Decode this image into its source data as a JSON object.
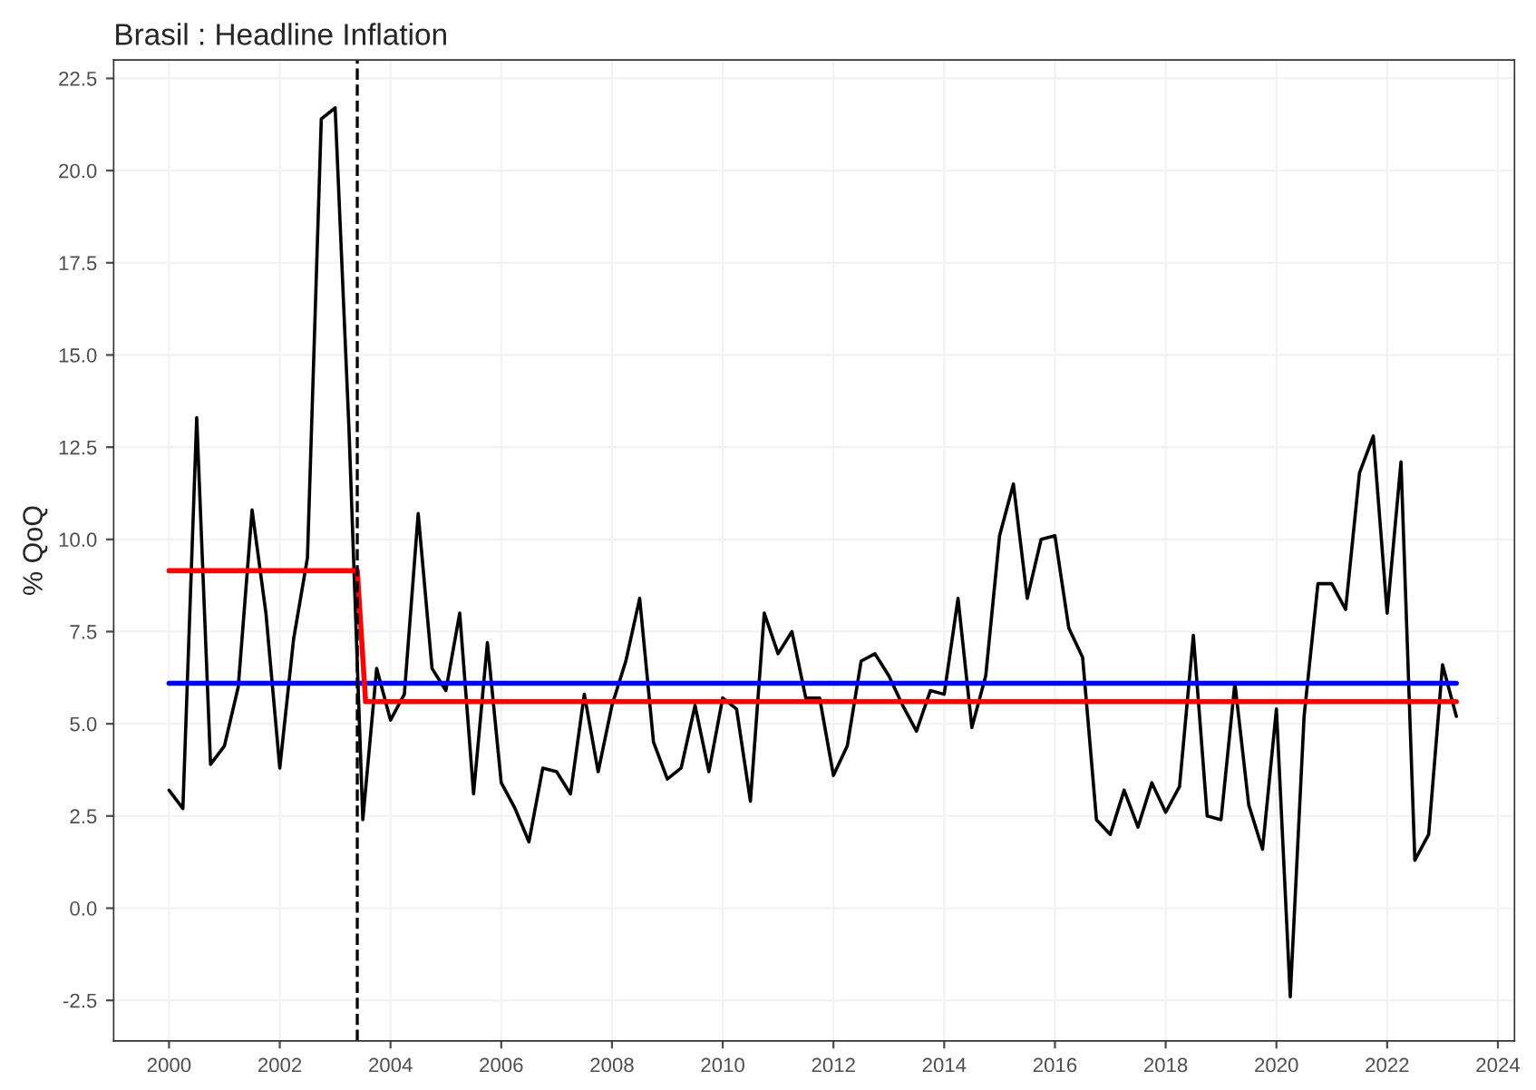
{
  "chart_data": {
    "type": "line",
    "title": "Brasil : Headline Inflation",
    "ylabel": "% QoQ",
    "series": [
      {
        "color": "#000000",
        "x": [
          2000,
          2000.25,
          2000.5,
          2000.75,
          2001,
          2001.25,
          2001.5,
          2001.75,
          2002,
          2002.25,
          2002.5,
          2002.75,
          2003,
          2003.25,
          2003.5,
          2003.75,
          2004,
          2004.25,
          2004.5,
          2004.75,
          2005,
          2005.25,
          2005.5,
          2005.75,
          2006,
          2006.25,
          2006.5,
          2006.75,
          2007,
          2007.25,
          2007.5,
          2007.75,
          2008,
          2008.25,
          2008.5,
          2008.75,
          2009,
          2009.25,
          2009.5,
          2009.75,
          2010,
          2010.25,
          2010.5,
          2010.75,
          2011,
          2011.25,
          2011.5,
          2011.75,
          2012,
          2012.25,
          2012.5,
          2012.75,
          2013,
          2013.25,
          2013.5,
          2013.75,
          2014,
          2014.25,
          2014.5,
          2014.75,
          2015,
          2015.25,
          2015.5,
          2015.75,
          2016,
          2016.25,
          2016.5,
          2016.75,
          2017,
          2017.25,
          2017.5,
          2017.75,
          2018,
          2018.25,
          2018.5,
          2018.75,
          2019,
          2019.25,
          2019.5,
          2019.75,
          2020,
          2020.25,
          2020.5,
          2020.75,
          2021,
          2021.25,
          2021.5,
          2021.75,
          2022,
          2022.25,
          2022.5,
          2022.75,
          2023,
          2023.25
        ],
        "values": [
          3.2,
          2.7,
          13.3,
          3.9,
          4.4,
          6.0,
          10.8,
          8.0,
          3.8,
          7.3,
          9.5,
          21.4,
          21.7,
          13.0,
          2.4,
          6.5,
          5.1,
          5.8,
          10.7,
          6.5,
          5.9,
          8.0,
          3.1,
          7.2,
          3.4,
          2.7,
          1.8,
          3.8,
          3.7,
          3.1,
          5.8,
          3.7,
          5.5,
          6.7,
          8.4,
          4.5,
          3.5,
          3.8,
          5.5,
          3.7,
          5.7,
          5.4,
          2.9,
          8.0,
          6.9,
          7.5,
          5.7,
          5.7,
          3.6,
          4.4,
          6.7,
          6.9,
          6.3,
          5.5,
          4.8,
          5.9,
          5.8,
          8.4,
          4.9,
          6.3,
          10.1,
          11.5,
          8.4,
          10.0,
          10.1,
          7.6,
          6.8,
          2.4,
          2.0,
          3.2,
          2.2,
          3.4,
          2.6,
          3.3,
          7.4,
          2.5,
          2.4,
          6.1,
          2.8,
          1.6,
          5.4,
          -2.4,
          5.2,
          8.8,
          8.8,
          8.1,
          11.8,
          12.8,
          8.0,
          12.1,
          1.3,
          2.0,
          6.6,
          5.2
        ]
      },
      {
        "color": "#0000ff",
        "x": [
          2000,
          2023.25
        ],
        "values": [
          6.1,
          6.1
        ]
      },
      {
        "color": "#ff0000",
        "x": [
          2000,
          2003.4,
          2003.55,
          2023.25
        ],
        "values": [
          9.15,
          9.15,
          5.6,
          5.6
        ]
      }
    ],
    "ref_lines": [
      {
        "axis": "x",
        "value": 2003.4,
        "color": "#000000",
        "line_style": "dashed"
      }
    ],
    "xlim": [
      1999.0,
      2024.3
    ],
    "ylim": [
      -3.6,
      23.0
    ],
    "xticks": [
      2000,
      2002,
      2004,
      2006,
      2008,
      2010,
      2012,
      2014,
      2016,
      2018,
      2020,
      2022,
      2024
    ],
    "yticks": [
      {
        "value": -2.5,
        "label": "-2.5"
      },
      {
        "value": 0,
        "label": "0.0"
      },
      {
        "value": 2.5,
        "label": "2.5"
      },
      {
        "value": 5,
        "label": "5.0"
      },
      {
        "value": 7.5,
        "label": "7.5"
      },
      {
        "value": 10,
        "label": "10.0"
      },
      {
        "value": 12.5,
        "label": "12.5"
      },
      {
        "value": 15,
        "label": "15.0"
      },
      {
        "value": 17.5,
        "label": "17.5"
      },
      {
        "value": 20,
        "label": "20.0"
      },
      {
        "value": 22.5,
        "label": "22.5"
      }
    ],
    "grid": true,
    "legend": false
  }
}
